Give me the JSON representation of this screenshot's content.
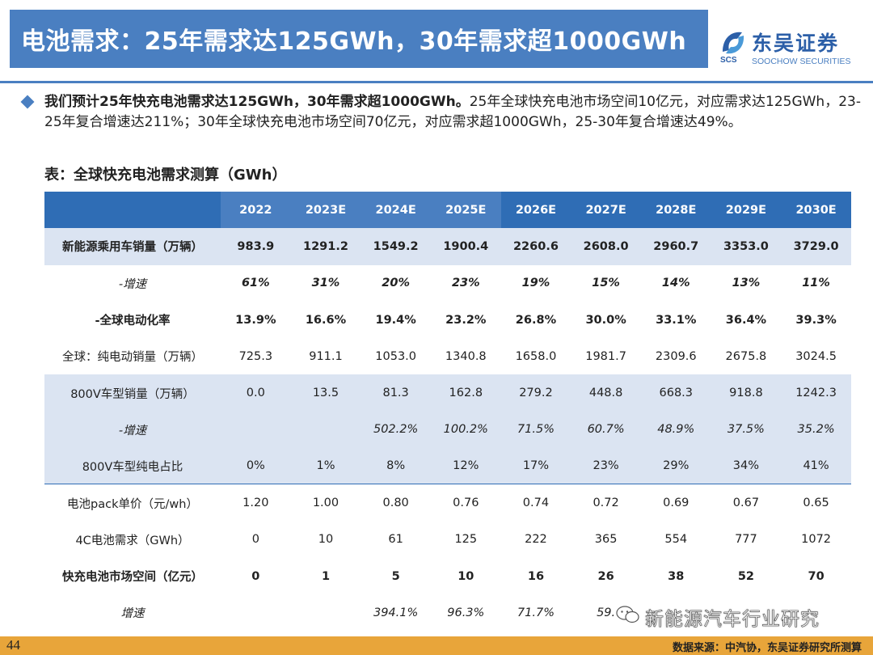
{
  "header": {
    "title": "电池需求：25年需求达125GWh，30年需求超1000GWh"
  },
  "logo": {
    "cn": "东吴证券",
    "en": "SOOCHOW SECURITIES",
    "abbr": "SCS"
  },
  "paragraph": {
    "lead": "我们预计25年快充电池需求达125GWh，30年需求超1000GWh。",
    "body": "25年全球快充电池市场空间10亿元，对应需求达125GWh，23-25年复合增速达211%；30年全球快充电池市场空间70亿元，对应需求超1000GWh，25-30年复合增速达49%。"
  },
  "table": {
    "title": "表：全球快充电池需求测算（GWh）",
    "years": [
      "2022",
      "2023E",
      "2024E",
      "2025E",
      "2026E",
      "2027E",
      "2028E",
      "2029E",
      "2030E"
    ],
    "rows": [
      {
        "label": "新能源乘用车销量（万辆）",
        "values": [
          "983.9",
          "1291.2",
          "1549.2",
          "1900.4",
          "2260.6",
          "2608.0",
          "2960.7",
          "3353.0",
          "3729.0"
        ]
      },
      {
        "label": "-增速",
        "values": [
          "61%",
          "31%",
          "20%",
          "23%",
          "19%",
          "15%",
          "14%",
          "13%",
          "11%"
        ]
      },
      {
        "label": "-全球电动化率",
        "values": [
          "13.9%",
          "16.6%",
          "19.4%",
          "23.2%",
          "26.8%",
          "30.0%",
          "33.1%",
          "36.4%",
          "39.3%"
        ]
      },
      {
        "label": "全球：纯电动销量（万辆）",
        "values": [
          "725.3",
          "911.1",
          "1053.0",
          "1340.8",
          "1658.0",
          "1981.7",
          "2309.6",
          "2675.8",
          "3024.5"
        ]
      },
      {
        "label": "800V车型销量（万辆）",
        "values": [
          "0.0",
          "13.5",
          "81.3",
          "162.8",
          "279.2",
          "448.8",
          "668.3",
          "918.8",
          "1242.3"
        ]
      },
      {
        "label": "-增速",
        "values": [
          "",
          "",
          "502.2%",
          "100.2%",
          "71.5%",
          "60.7%",
          "48.9%",
          "37.5%",
          "35.2%"
        ]
      },
      {
        "label": "800V车型纯电占比",
        "values": [
          "0%",
          "1%",
          "8%",
          "12%",
          "17%",
          "23%",
          "29%",
          "34%",
          "41%"
        ]
      },
      {
        "label": "电池pack单价（元/wh）",
        "values": [
          "1.20",
          "1.00",
          "0.80",
          "0.76",
          "0.74",
          "0.72",
          "0.69",
          "0.67",
          "0.65"
        ]
      },
      {
        "label": "4C电池需求（GWh）",
        "values": [
          "0",
          "10",
          "61",
          "125",
          "222",
          "365",
          "554",
          "777",
          "1072"
        ]
      },
      {
        "label": "快充电池市场空间（亿元）",
        "values": [
          "0",
          "1",
          "5",
          "10",
          "16",
          "26",
          "38",
          "52",
          "70"
        ]
      },
      {
        "label": "增速",
        "values": [
          "",
          "",
          "394.1%",
          "96.3%",
          "71.7%",
          "59.",
          "",
          "",
          ""
        ]
      }
    ]
  },
  "watermark": {
    "text": "新能源汽车行业研究"
  },
  "footer": {
    "page": "44",
    "source": "数据来源：中汽协，东吴证券研究所测算"
  }
}
